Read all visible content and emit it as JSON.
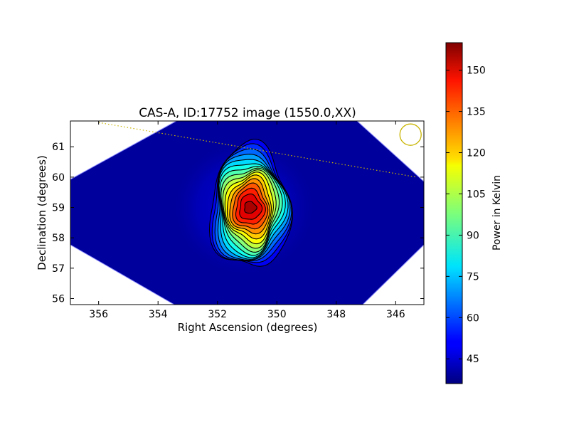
{
  "chart_data": {
    "type": "heatmap",
    "title": "CAS-A, ID:17752 image (1550.0,XX)",
    "xlabel": "Right Ascension (degrees)",
    "ylabel": "Declination (degrees)",
    "xlim": [
      356.95,
      345.05
    ],
    "ylim": [
      55.8,
      61.85
    ],
    "x_ticks": [
      356,
      354,
      352,
      350,
      348,
      346
    ],
    "y_ticks": [
      56,
      57,
      58,
      59,
      60,
      61
    ],
    "source_peak": {
      "ra": 350.9,
      "dec": 59.0,
      "value": 157
    },
    "background_value": 45,
    "contour_levels": [
      50,
      57,
      64,
      71,
      78,
      85,
      92,
      99,
      106,
      113,
      120,
      127,
      134,
      141,
      148,
      155
    ],
    "grid": false,
    "legend": "none",
    "colorbar": {
      "label": "Power in Kelvin",
      "ticks": [
        45,
        60,
        75,
        90,
        105,
        120,
        135,
        150
      ],
      "range": [
        36,
        160
      ],
      "colormap": "jet"
    },
    "beam_circle": {
      "ra": 345.5,
      "dec": 61.4,
      "color": "#c8b400"
    },
    "track_line": {
      "color": "#c8b400",
      "style": "dotted",
      "from": {
        "ra": 356.0,
        "dec": 61.8
      },
      "to": {
        "ra": 345.3,
        "dec": 60.0
      }
    }
  }
}
